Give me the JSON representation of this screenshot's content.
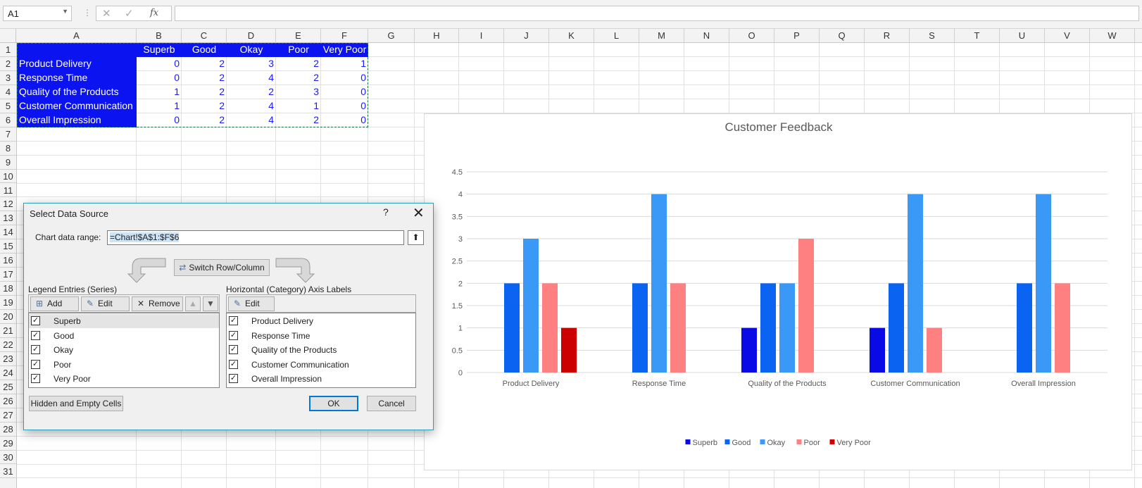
{
  "formula_bar": {
    "name_box": "A1",
    "fx": "fx",
    "formula": ""
  },
  "columns": [
    "A",
    "B",
    "C",
    "D",
    "E",
    "F",
    "G",
    "H",
    "I",
    "J",
    "K",
    "L",
    "M",
    "N",
    "O",
    "P",
    "Q",
    "R",
    "S",
    "T",
    "U",
    "V",
    "W"
  ],
  "rows": [
    "1",
    "2",
    "3",
    "4",
    "5",
    "6",
    "7",
    "8",
    "9",
    "10",
    "11",
    "12",
    "13",
    "14",
    "15",
    "16",
    "17",
    "18",
    "19",
    "20",
    "21",
    "22",
    "23",
    "24",
    "25",
    "26",
    "27",
    "28",
    "29",
    "30",
    "31"
  ],
  "sheet": {
    "headers": [
      "Superb",
      "Good",
      "Okay",
      "Poor",
      "Very Poor"
    ],
    "data": [
      {
        "label": "Product Delivery",
        "values": [
          "0",
          "2",
          "3",
          "2",
          "1"
        ]
      },
      {
        "label": "Response Time",
        "values": [
          "0",
          "2",
          "4",
          "2",
          "0"
        ]
      },
      {
        "label": "Quality of the Products",
        "values": [
          "1",
          "2",
          "2",
          "3",
          "0"
        ]
      },
      {
        "label": "Customer Communication",
        "values": [
          "1",
          "2",
          "4",
          "1",
          "0"
        ]
      },
      {
        "label": "Overall Impression",
        "values": [
          "0",
          "2",
          "4",
          "2",
          "0"
        ]
      }
    ]
  },
  "chart_data": {
    "type": "bar",
    "title": "Customer Feedback",
    "categories": [
      "Product Delivery",
      "Response Time",
      "Quality of the Products",
      "Customer Communication",
      "Overall Impression"
    ],
    "series": [
      {
        "name": "Superb",
        "values": [
          0,
          0,
          1,
          1,
          0
        ],
        "color": "#0a0ae6"
      },
      {
        "name": "Good",
        "values": [
          2,
          2,
          2,
          2,
          2
        ],
        "color": "#0b63f2"
      },
      {
        "name": "Okay",
        "values": [
          3,
          4,
          2,
          4,
          4
        ],
        "color": "#3a98f7"
      },
      {
        "name": "Poor",
        "values": [
          2,
          2,
          3,
          1,
          2
        ],
        "color": "#ff8080"
      },
      {
        "name": "Very Poor",
        "values": [
          1,
          0,
          0,
          0,
          0
        ],
        "color": "#cc0000"
      }
    ],
    "ylim": [
      0,
      4.5
    ],
    "yticks": [
      "0",
      "0.5",
      "1",
      "1.5",
      "2",
      "2.5",
      "3",
      "3.5",
      "4",
      "4.5"
    ],
    "grid": true,
    "legend_position": "bottom"
  },
  "dialog": {
    "title": "Select Data Source",
    "help": "?",
    "close": "✕",
    "range_label": "Chart data range:",
    "range_value": "=Chart!$A$1:$F$6",
    "switch_label": "Switch Row/Column",
    "legend_label": "Legend Entries (Series)",
    "axis_label": "Horizontal (Category) Axis Labels",
    "add": "Add",
    "edit": "Edit",
    "remove": "Remove",
    "edit2": "Edit",
    "series_items": [
      "Superb",
      " Good",
      "Okay",
      "Poor",
      "Very Poor"
    ],
    "axis_items": [
      "Product Delivery",
      "Response Time",
      "Quality of the Products",
      "Customer Communication",
      "Overall Impression"
    ],
    "hidden_cells": "Hidden and Empty Cells",
    "ok": "OK",
    "cancel": "Cancel"
  }
}
